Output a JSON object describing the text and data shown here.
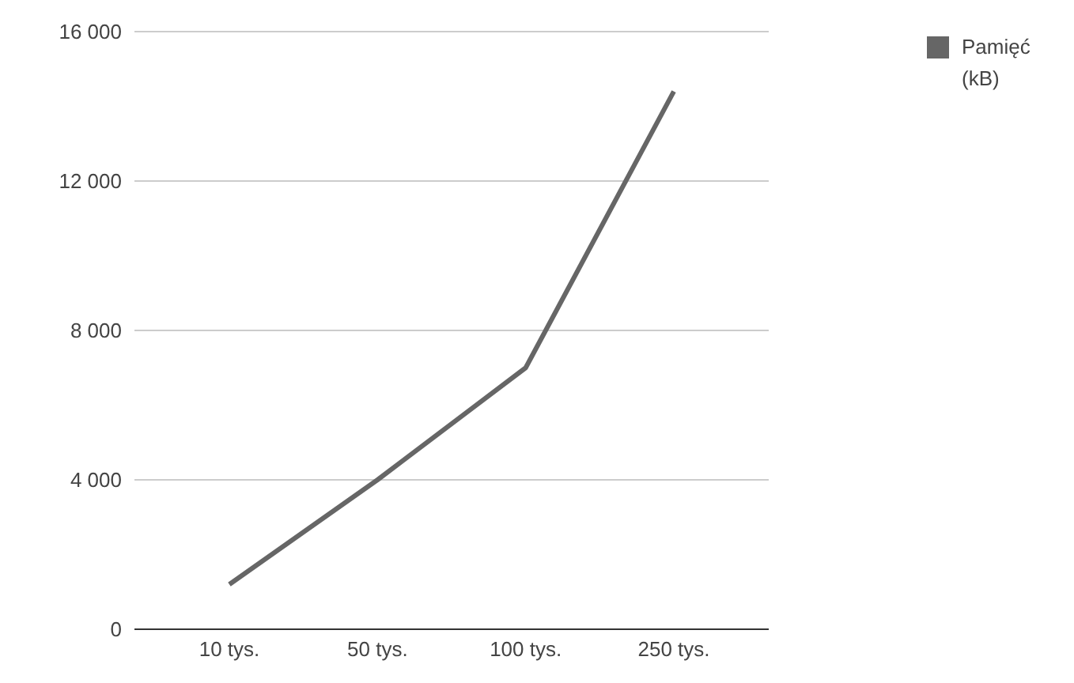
{
  "chart_data": {
    "type": "line",
    "categories": [
      "10 tys.",
      "50 tys.",
      "100 tys.",
      "250 tys."
    ],
    "series": [
      {
        "name": "Pamięć (kB)",
        "color": "#666666",
        "values": [
          1200,
          4000,
          7000,
          14400
        ]
      }
    ],
    "ylim": [
      0,
      16000
    ],
    "yticks": [
      {
        "value": 0,
        "label": "0"
      },
      {
        "value": 4000,
        "label": "4 000"
      },
      {
        "value": 8000,
        "label": "8 000"
      },
      {
        "value": 12000,
        "label": "12 000"
      },
      {
        "value": 16000,
        "label": "16 000"
      }
    ],
    "grid": "y",
    "legend": "top right",
    "marker": "none"
  }
}
